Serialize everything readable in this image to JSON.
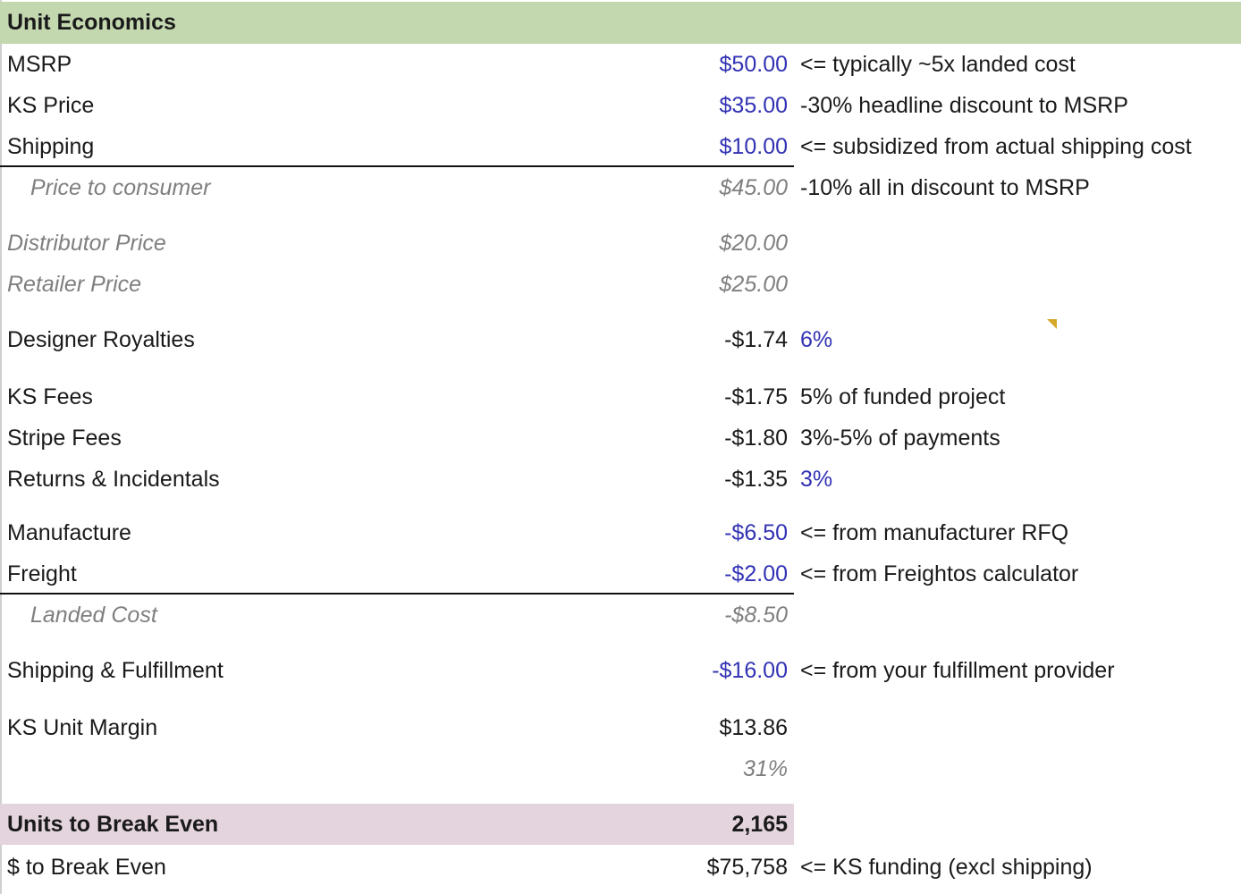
{
  "title": "Unit Economics",
  "rows": {
    "msrp": {
      "label": "MSRP",
      "value": "$50.00",
      "note": "<= typically ~5x landed cost"
    },
    "ks_price": {
      "label": "KS Price",
      "value": "$35.00",
      "note": "-30% headline discount to MSRP"
    },
    "shipping": {
      "label": "Shipping",
      "value": "$10.00",
      "note": "<= subsidized from actual shipping cost"
    },
    "price_to_consumer": {
      "label": "Price to consumer",
      "value": "$45.00",
      "note": "-10% all in discount to MSRP"
    },
    "distributor_price": {
      "label": "Distributor Price",
      "value": "$20.00"
    },
    "retailer_price": {
      "label": "Retailer Price",
      "value": "$25.00"
    },
    "designer_royalties": {
      "label": "Designer Royalties",
      "value": "-$1.74",
      "note": "6%"
    },
    "ks_fees": {
      "label": "KS Fees",
      "value": "-$1.75",
      "note": "5% of funded project"
    },
    "stripe_fees": {
      "label": "Stripe Fees",
      "value": "-$1.80",
      "note": "3%-5% of payments"
    },
    "returns": {
      "label": "Returns & Incidentals",
      "value": "-$1.35",
      "note": "3%"
    },
    "manufacture": {
      "label": "Manufacture",
      "value": "-$6.50",
      "note": "<= from manufacturer RFQ"
    },
    "freight": {
      "label": "Freight",
      "value": "-$2.00",
      "note": "<= from Freightos calculator"
    },
    "landed_cost": {
      "label": "Landed Cost",
      "value": "-$8.50"
    },
    "shipping_fulfillment": {
      "label": "Shipping & Fulfillment",
      "value": "-$16.00",
      "note": "<= from your fulfillment provider"
    },
    "ks_unit_margin": {
      "label": "KS Unit Margin",
      "value": "$13.86"
    },
    "margin_pct": {
      "value": "31%"
    },
    "units_break_even": {
      "label": "Units to Break Even",
      "value": "2,165"
    },
    "dollars_break_even": {
      "label": "$ to Break Even",
      "value": "$75,758",
      "note": "<= KS funding (excl shipping)"
    }
  },
  "colors": {
    "header_fill": "#c4d8b0",
    "break_even_fill": "#e4d4de",
    "input_blue": "#3232b4",
    "derived_gray": "#7f7f7f",
    "comment_flag": "#d6a828"
  }
}
